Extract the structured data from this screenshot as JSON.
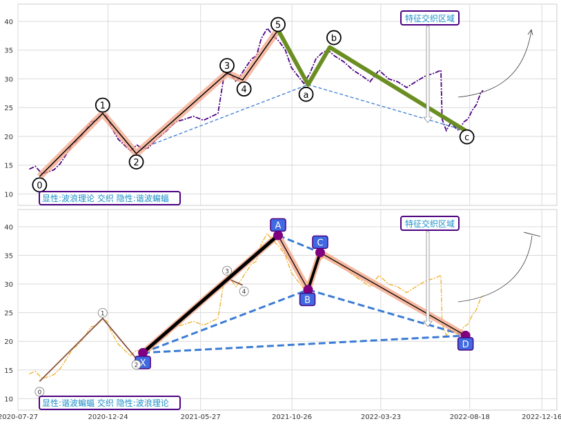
{
  "chart_data": [
    {
      "type": "line",
      "panel": "top",
      "ylim": [
        8,
        43
      ],
      "yticks": [
        10,
        15,
        20,
        25,
        30,
        35,
        40
      ],
      "grid": true,
      "price_color": "#4b0082",
      "price": [
        [
          "2020-08-15",
          14.3
        ],
        [
          "2020-08-25",
          14.8
        ],
        [
          "2020-09-05",
          13.5
        ],
        [
          "2020-09-15",
          13.8
        ],
        [
          "2020-09-25",
          14.2
        ],
        [
          "2020-10-05",
          15.2
        ],
        [
          "2020-10-15",
          16.8
        ],
        [
          "2020-10-25",
          18.5
        ],
        [
          "2020-11-05",
          19.5
        ],
        [
          "2020-11-15",
          20.8
        ],
        [
          "2020-11-25",
          22.5
        ],
        [
          "2020-12-05",
          22.8
        ],
        [
          "2020-12-15",
          24.0
        ],
        [
          "2020-12-22",
          23.5
        ],
        [
          "2020-12-30",
          21.5
        ],
        [
          "2021-01-10",
          19.5
        ],
        [
          "2021-01-20",
          18.5
        ],
        [
          "2021-01-30",
          17.5
        ],
        [
          "2021-02-10",
          18.5
        ],
        [
          "2021-02-20",
          17.8
        ],
        [
          "2021-03-01",
          18.0
        ],
        [
          "2021-03-15",
          19.5
        ],
        [
          "2021-04-01",
          21.0
        ],
        [
          "2021-04-15",
          22.5
        ],
        [
          "2021-05-01",
          23.0
        ],
        [
          "2021-05-15",
          23.5
        ],
        [
          "2021-06-01",
          22.8
        ],
        [
          "2021-06-15",
          23.5
        ],
        [
          "2021-06-25",
          24.0
        ],
        [
          "2021-07-05",
          30.5
        ],
        [
          "2021-07-15",
          31.0
        ],
        [
          "2021-07-25",
          29.5
        ],
        [
          "2021-08-01",
          30.5
        ],
        [
          "2021-08-10",
          32.0
        ],
        [
          "2021-08-20",
          33.5
        ],
        [
          "2021-08-28",
          34.0
        ],
        [
          "2021-09-05",
          37.0
        ],
        [
          "2021-09-15",
          38.8
        ],
        [
          "2021-09-25",
          37.5
        ],
        [
          "2021-10-05",
          36.5
        ],
        [
          "2021-10-15",
          35.0
        ],
        [
          "2021-10-25",
          32.0
        ],
        [
          "2021-11-05",
          30.5
        ],
        [
          "2021-11-15",
          29.2
        ],
        [
          "2021-11-25",
          31.0
        ],
        [
          "2021-12-05",
          33.5
        ],
        [
          "2021-12-15",
          34.5
        ],
        [
          "2021-12-25",
          35.0
        ],
        [
          "2022-01-05",
          34.0
        ],
        [
          "2022-01-20",
          33.0
        ],
        [
          "2022-02-05",
          31.5
        ],
        [
          "2022-02-20",
          30.5
        ],
        [
          "2022-03-05",
          29.5
        ],
        [
          "2022-03-20",
          31.5
        ],
        [
          "2022-04-05",
          30.0
        ],
        [
          "2022-04-20",
          29.5
        ],
        [
          "2022-05-05",
          28.5
        ],
        [
          "2022-05-20",
          29.5
        ],
        [
          "2022-06-05",
          30.5
        ],
        [
          "2022-06-20",
          31.0
        ],
        [
          "2022-07-01",
          31.5
        ],
        [
          "2022-07-03",
          23.0
        ],
        [
          "2022-07-10",
          21.0
        ],
        [
          "2022-07-18",
          22.5
        ],
        [
          "2022-07-25",
          21.5
        ],
        [
          "2022-07-31",
          21.0
        ],
        [
          "2022-08-08",
          22.5
        ],
        [
          "2022-08-15",
          23.0
        ],
        [
          "2022-08-22",
          24.5
        ],
        [
          "2022-08-29",
          25.5
        ],
        [
          "2022-09-05",
          27.5
        ],
        [
          "2022-09-09",
          28.0
        ]
      ],
      "wave_points": [
        {
          "label": "0",
          "date": "2020-09-01",
          "value": 13.0
        },
        {
          "label": "1",
          "date": "2020-12-15",
          "value": 24.0
        },
        {
          "label": "2",
          "date": "2021-02-09",
          "value": 17.0
        },
        {
          "label": "3",
          "date": "2021-07-10",
          "value": 31.0
        },
        {
          "label": "4",
          "date": "2021-08-05",
          "value": 29.8
        },
        {
          "label": "5",
          "date": "2021-10-03",
          "value": 38.5
        }
      ],
      "correction_points": [
        {
          "label": "a",
          "date": "2021-11-22",
          "value": 29.0
        },
        {
          "label": "b",
          "date": "2021-12-28",
          "value": 35.5
        },
        {
          "label": "c",
          "date": "2022-08-11",
          "value": 21.0
        }
      ],
      "trendline": [
        {
          "date": "2021-02-20",
          "value": 18.0
        },
        {
          "date": "2021-11-22",
          "value": 29.0
        },
        {
          "date": "2022-08-11",
          "value": 21.0
        }
      ],
      "annotation_box": "特征交织区域",
      "legend_text": "显性:波浪理论 交织 隐性:谐波蝙蝠"
    },
    {
      "type": "line",
      "panel": "bottom",
      "ylim": [
        8,
        43
      ],
      "yticks": [
        10,
        15,
        20,
        25,
        30,
        35,
        40
      ],
      "grid": true,
      "price_color": "#f0b232",
      "harmonic_points": [
        {
          "label": "X",
          "date": "2021-02-20",
          "value": 18.0
        },
        {
          "label": "A",
          "date": "2021-10-03",
          "value": 38.5
        },
        {
          "label": "B",
          "date": "2021-11-22",
          "value": 29.0
        },
        {
          "label": "C",
          "date": "2021-12-12",
          "value": 35.5
        },
        {
          "label": "D",
          "date": "2022-08-11",
          "value": 21.0
        }
      ],
      "wave_points": [
        {
          "label": "0",
          "date": "2020-09-01",
          "value": 13.0
        },
        {
          "label": "1",
          "date": "2020-12-15",
          "value": 24.0
        },
        {
          "label": "2",
          "date": "2021-02-09",
          "value": 17.0
        },
        {
          "label": "3",
          "date": "2021-07-10",
          "value": 31.0
        },
        {
          "label": "4",
          "date": "2021-08-05",
          "value": 29.8
        }
      ],
      "annotation_box": "特征交织区域",
      "legend_text": "显性:谐波蝙蝠 交织 隐性:波浪理论"
    }
  ],
  "xaxis": {
    "tick_labels": [
      "2020-07-27",
      "2020-12-24",
      "2021-05-27",
      "2021-10-26",
      "2022-03-23",
      "2022-08-18",
      "2022-12-16"
    ],
    "tick_dates": [
      "2020-07-27",
      "2020-12-24",
      "2021-05-27",
      "2021-10-26",
      "2022-03-23",
      "2022-08-18",
      "2022-12-16"
    ],
    "range": [
      "2020-07-27",
      "2023-01-10"
    ]
  },
  "colors": {
    "wave_band": "#f4a688",
    "wave_line": "#000000",
    "correction": "#6b8e23",
    "trend": "#3a7bd5",
    "harmonic_marker": "#800080",
    "harmonic_label_bg": "#4169e1",
    "label_border": "#4b0082",
    "label_text": "#1e90c8"
  }
}
